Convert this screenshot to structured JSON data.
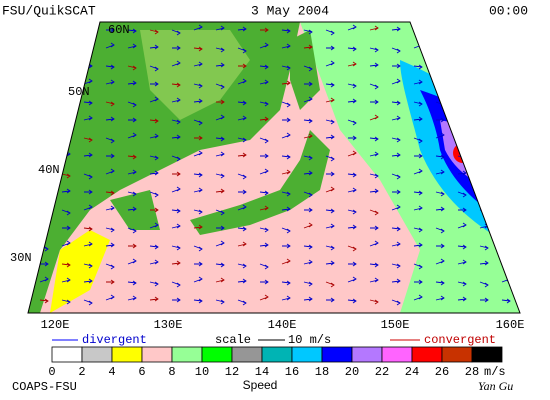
{
  "header": {
    "product": "FSU/QuikSCAT",
    "date": "3 May 2004",
    "time": "00:00"
  },
  "map": {
    "latitude_labels": [
      "60N",
      "50N",
      "40N",
      "30N"
    ],
    "longitude_labels": [
      "120E",
      "130E",
      "140E",
      "150E",
      "160E"
    ]
  },
  "legend": {
    "divergent": "divergent",
    "scale_label": "scale",
    "scale_value": "10 m/s",
    "convergent": "convergent"
  },
  "colorbar": {
    "ticks": [
      "0",
      "2",
      "4",
      "6",
      "8",
      "10",
      "12",
      "14",
      "16",
      "18",
      "20",
      "22",
      "24",
      "26",
      "28"
    ],
    "unit": "m/s",
    "colors": [
      "#ffffff",
      "#c8c8c8",
      "#ffff00",
      "#ffc8c8",
      "#96ff96",
      "#00ff00",
      "#969696",
      "#00b4b4",
      "#00c8ff",
      "#0000ff",
      "#b478ff",
      "#ff64ff",
      "#ff0000",
      "#c83200",
      "#000000"
    ],
    "title": "Speed"
  },
  "footer": {
    "credit": "COAPS-FSU",
    "author": "Yan Gu"
  }
}
